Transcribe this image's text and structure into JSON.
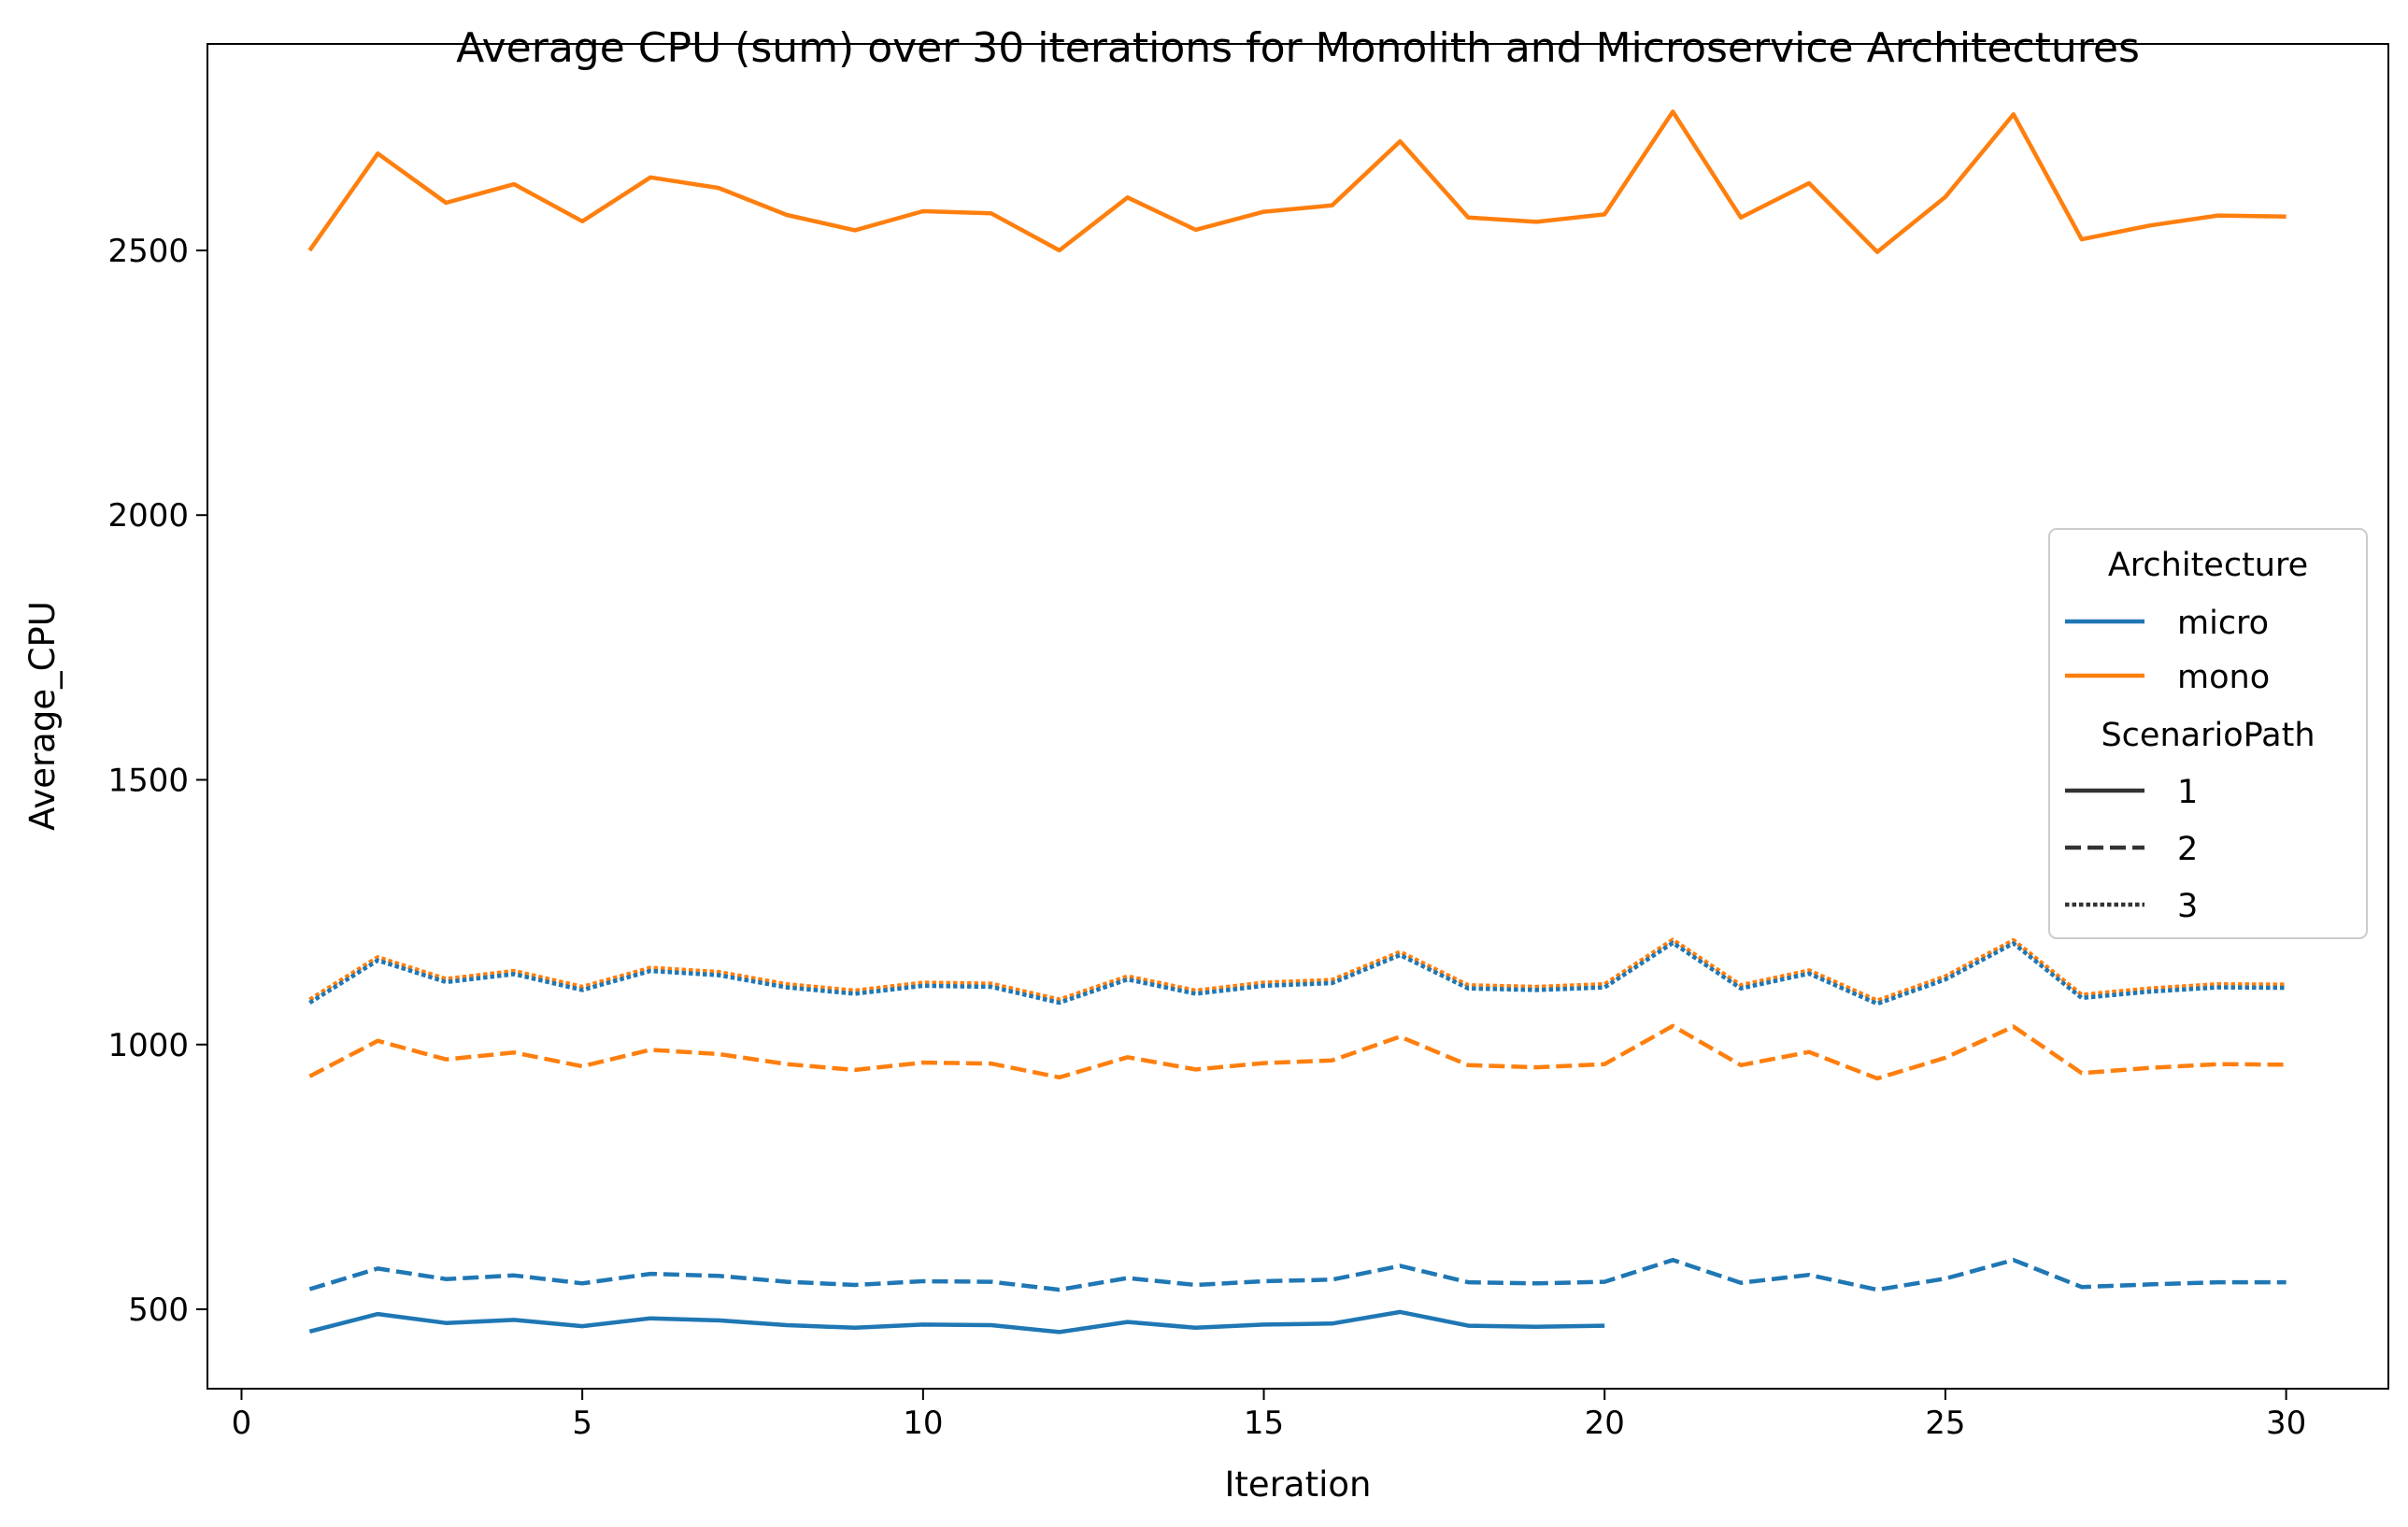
{
  "chart_data": {
    "type": "line",
    "title": "Average CPU (sum) over 30 iterations for Monolith and Microservice Architectures",
    "xlabel": "Iteration",
    "ylabel": "Average_CPU",
    "xlim": [
      -0.5,
      31.5
    ],
    "ylim": [
      350,
      2890
    ],
    "x_ticks": [
      0,
      5,
      10,
      15,
      20,
      25,
      30
    ],
    "y_ticks": [
      500,
      1000,
      1500,
      2000,
      2500
    ],
    "grid": false,
    "legend": {
      "placement": "center-right",
      "hue_title": "Architecture",
      "hue_entries": [
        {
          "label": "micro",
          "color": "#1f77b4"
        },
        {
          "label": "mono",
          "color": "#ff7f0e"
        }
      ],
      "style_title": "ScenarioPath",
      "style_entries": [
        {
          "label": "1",
          "dash": "solid"
        },
        {
          "label": "2",
          "dash": "dashed"
        },
        {
          "label": "3",
          "dash": "dotted"
        }
      ]
    },
    "series": [
      {
        "name": "mono-1",
        "architecture": "mono",
        "scenario": "1",
        "color": "#ff7f0e",
        "dash": "solid",
        "x": [
          1,
          2,
          3,
          4,
          5,
          6,
          7,
          8,
          9,
          10,
          11,
          12,
          13,
          14,
          15,
          16,
          17,
          18,
          19,
          20,
          21,
          22,
          23,
          24,
          25,
          26,
          27,
          28,
          29,
          30
        ],
        "values": [
          2500,
          2683,
          2590,
          2625,
          2555,
          2638,
          2618,
          2567,
          2538,
          2574,
          2570,
          2500,
          2600,
          2539,
          2573,
          2585,
          2706,
          2562,
          2554,
          2568,
          2762,
          2562,
          2627,
          2497,
          2601,
          2757,
          2521,
          2547,
          2566,
          2564
        ]
      },
      {
        "name": "mono-3",
        "architecture": "mono",
        "scenario": "3",
        "color": "#ff7f0e",
        "dash": "dotted",
        "x": [
          1,
          2,
          3,
          4,
          5,
          6,
          7,
          8,
          9,
          10,
          11,
          12,
          13,
          14,
          15,
          16,
          17,
          18,
          19,
          20,
          21,
          22,
          23,
          24,
          25,
          26,
          27,
          28,
          29,
          30
        ],
        "values": [
          1085,
          1165,
          1124,
          1139,
          1109,
          1145,
          1137,
          1114,
          1102,
          1117,
          1115,
          1085,
          1129,
          1102,
          1117,
          1122,
          1175,
          1112,
          1109,
          1114,
          1198,
          1112,
          1140,
          1083,
          1129,
          1197,
          1094,
          1106,
          1114,
          1113
        ]
      },
      {
        "name": "micro-3",
        "architecture": "micro",
        "scenario": "3",
        "color": "#1f77b4",
        "dash": "dotted",
        "x": [
          1,
          2,
          3,
          4,
          5,
          6,
          7,
          8,
          9,
          10,
          11,
          12,
          13,
          14,
          15,
          16,
          17,
          18,
          19,
          20,
          21,
          22,
          23,
          24,
          25,
          26,
          27,
          28,
          29,
          30
        ],
        "values": [
          1079,
          1159,
          1118,
          1133,
          1103,
          1139,
          1131,
          1108,
          1096,
          1111,
          1109,
          1079,
          1123,
          1096,
          1111,
          1116,
          1169,
          1106,
          1103,
          1108,
          1192,
          1106,
          1134,
          1077,
          1123,
          1191,
          1088,
          1100,
          1108,
          1107
        ]
      },
      {
        "name": "mono-2",
        "architecture": "mono",
        "scenario": "2",
        "color": "#ff7f0e",
        "dash": "dashed",
        "x": [
          1,
          2,
          3,
          4,
          5,
          6,
          7,
          8,
          9,
          10,
          11,
          12,
          13,
          14,
          15,
          16,
          17,
          18,
          19,
          20,
          21,
          22,
          23,
          24,
          25,
          26,
          27,
          28,
          29,
          30
        ],
        "values": [
          940,
          1007,
          972,
          985,
          959,
          990,
          982,
          963,
          952,
          966,
          964,
          938,
          976,
          953,
          965,
          970,
          1015,
          961,
          957,
          963,
          1035,
          961,
          986,
          936,
          975,
          1034,
          946,
          956,
          963,
          962
        ]
      },
      {
        "name": "micro-2",
        "architecture": "micro",
        "scenario": "2",
        "color": "#1f77b4",
        "dash": "dashed",
        "x": [
          1,
          2,
          3,
          4,
          5,
          6,
          7,
          8,
          9,
          10,
          11,
          12,
          13,
          14,
          15,
          16,
          17,
          18,
          19,
          20,
          21,
          22,
          23,
          24,
          25,
          26,
          27,
          28,
          29,
          30
        ],
        "values": [
          538,
          577,
          557,
          564,
          549,
          567,
          563,
          552,
          546,
          553,
          552,
          537,
          559,
          546,
          553,
          556,
          582,
          551,
          549,
          552,
          593,
          550,
          565,
          537,
          558,
          593,
          542,
          547,
          551,
          551
        ]
      },
      {
        "name": "micro-1",
        "architecture": "micro",
        "scenario": "1",
        "color": "#1f77b4",
        "dash": "solid",
        "x": [
          1,
          2,
          3,
          4,
          5,
          6,
          7,
          8,
          9,
          10,
          11,
          12,
          13,
          14,
          15,
          16,
          17,
          18,
          19,
          20
        ],
        "values": [
          458,
          491,
          474,
          480,
          468,
          483,
          479,
          470,
          465,
          471,
          470,
          457,
          476,
          465,
          471,
          473,
          495,
          469,
          467,
          469
        ]
      }
    ]
  }
}
